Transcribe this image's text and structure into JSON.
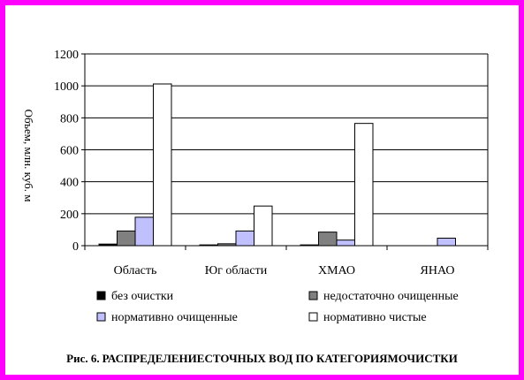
{
  "chart_data": {
    "type": "bar",
    "ylabel": "Объем, млн. куб. м",
    "ylim": [
      0,
      1200
    ],
    "yticks": [
      "0",
      "200",
      "400",
      "600",
      "800",
      "1000",
      "1200"
    ],
    "grid": true,
    "categories": [
      "Область",
      "Юг области",
      "ХМАО",
      "ЯНАО"
    ],
    "series": [
      {
        "name": "без очистки",
        "color": "#000000",
        "values": [
          10,
          5,
          5,
          0
        ]
      },
      {
        "name": "недостаточно очищенные",
        "color": "#808080",
        "values": [
          92,
          12,
          85,
          0
        ]
      },
      {
        "name": "нормативно очищенные",
        "color": "#c0c0ff",
        "values": [
          178,
          92,
          35,
          47
        ]
      },
      {
        "name": "нормативно чистые",
        "color": "#ffffff",
        "values": [
          1012,
          248,
          765,
          0
        ]
      }
    ],
    "legend_position": "bottom"
  },
  "caption": {
    "prefix": "Рис. 6.",
    "title": "РАСПРЕДЕЛЕНИЕСТОЧНЫХ ВОД ПО КАТЕГОРИЯМОЧИСТКИ"
  }
}
